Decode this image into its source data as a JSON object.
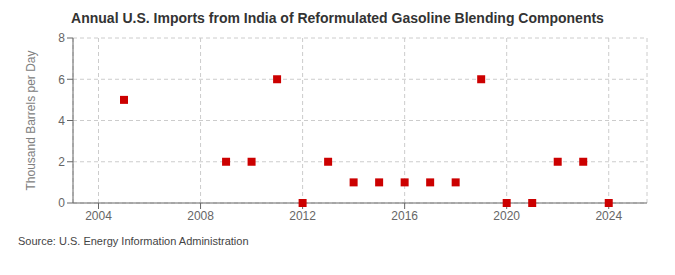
{
  "chart_data": {
    "type": "scatter",
    "title": "Annual U.S. Imports from India of Reformulated Gasoline Blending Components",
    "ylabel": "Thousand Barrels per Day",
    "annotations": [
      "Source: U.S. Energy Information Administration"
    ],
    "x": [
      2005,
      2009,
      2010,
      2011,
      2012,
      2013,
      2014,
      2015,
      2016,
      2017,
      2018,
      2019,
      2020,
      2021,
      2022,
      2023,
      2024
    ],
    "values": [
      5,
      2,
      2,
      6,
      0,
      2,
      1,
      1,
      1,
      1,
      1,
      6,
      0,
      0,
      2,
      2,
      0
    ],
    "color": "#cc0000",
    "marker": "square",
    "xlim": [
      2003.0,
      2025.5
    ],
    "ylim": [
      0,
      8
    ],
    "xticks": [
      2004,
      2008,
      2012,
      2016,
      2020,
      2024
    ],
    "yticks": [
      0,
      2,
      4,
      6,
      8
    ],
    "grid": true
  }
}
